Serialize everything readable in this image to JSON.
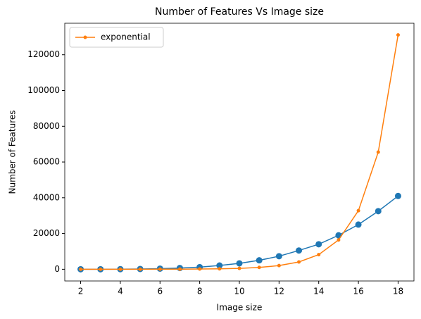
{
  "chart_data": {
    "type": "line",
    "title": "Number of Features Vs Image size",
    "x_label": "Image size",
    "y_label": "Number of Features",
    "x": [
      2,
      3,
      4,
      5,
      6,
      7,
      8,
      9,
      10,
      11,
      12,
      13,
      14,
      15,
      16,
      17,
      18
    ],
    "series": [
      {
        "color": "#1f77b4",
        "marker": "large",
        "values": [
          0,
          10,
          50,
          150,
          350,
          700,
          1200,
          2100,
          3300,
          5000,
          7300,
          10500,
          14000,
          19000,
          25000,
          32500,
          41000
        ]
      },
      {
        "name": "exponential",
        "color": "#ff7f0e",
        "marker": "small",
        "values": [
          2,
          4,
          8,
          16,
          32,
          64,
          128,
          256,
          512,
          1024,
          2048,
          4096,
          8192,
          16384,
          32768,
          65536,
          131072
        ]
      }
    ],
    "xlim": [
      1.2,
      18.8
    ],
    "ylim": [
      -6553.6,
      137625.6
    ],
    "xticks": [
      2,
      4,
      6,
      8,
      10,
      12,
      14,
      16,
      18
    ],
    "yticks": [
      0,
      20000,
      40000,
      60000,
      80000,
      100000,
      120000
    ],
    "legend": "upper left"
  }
}
